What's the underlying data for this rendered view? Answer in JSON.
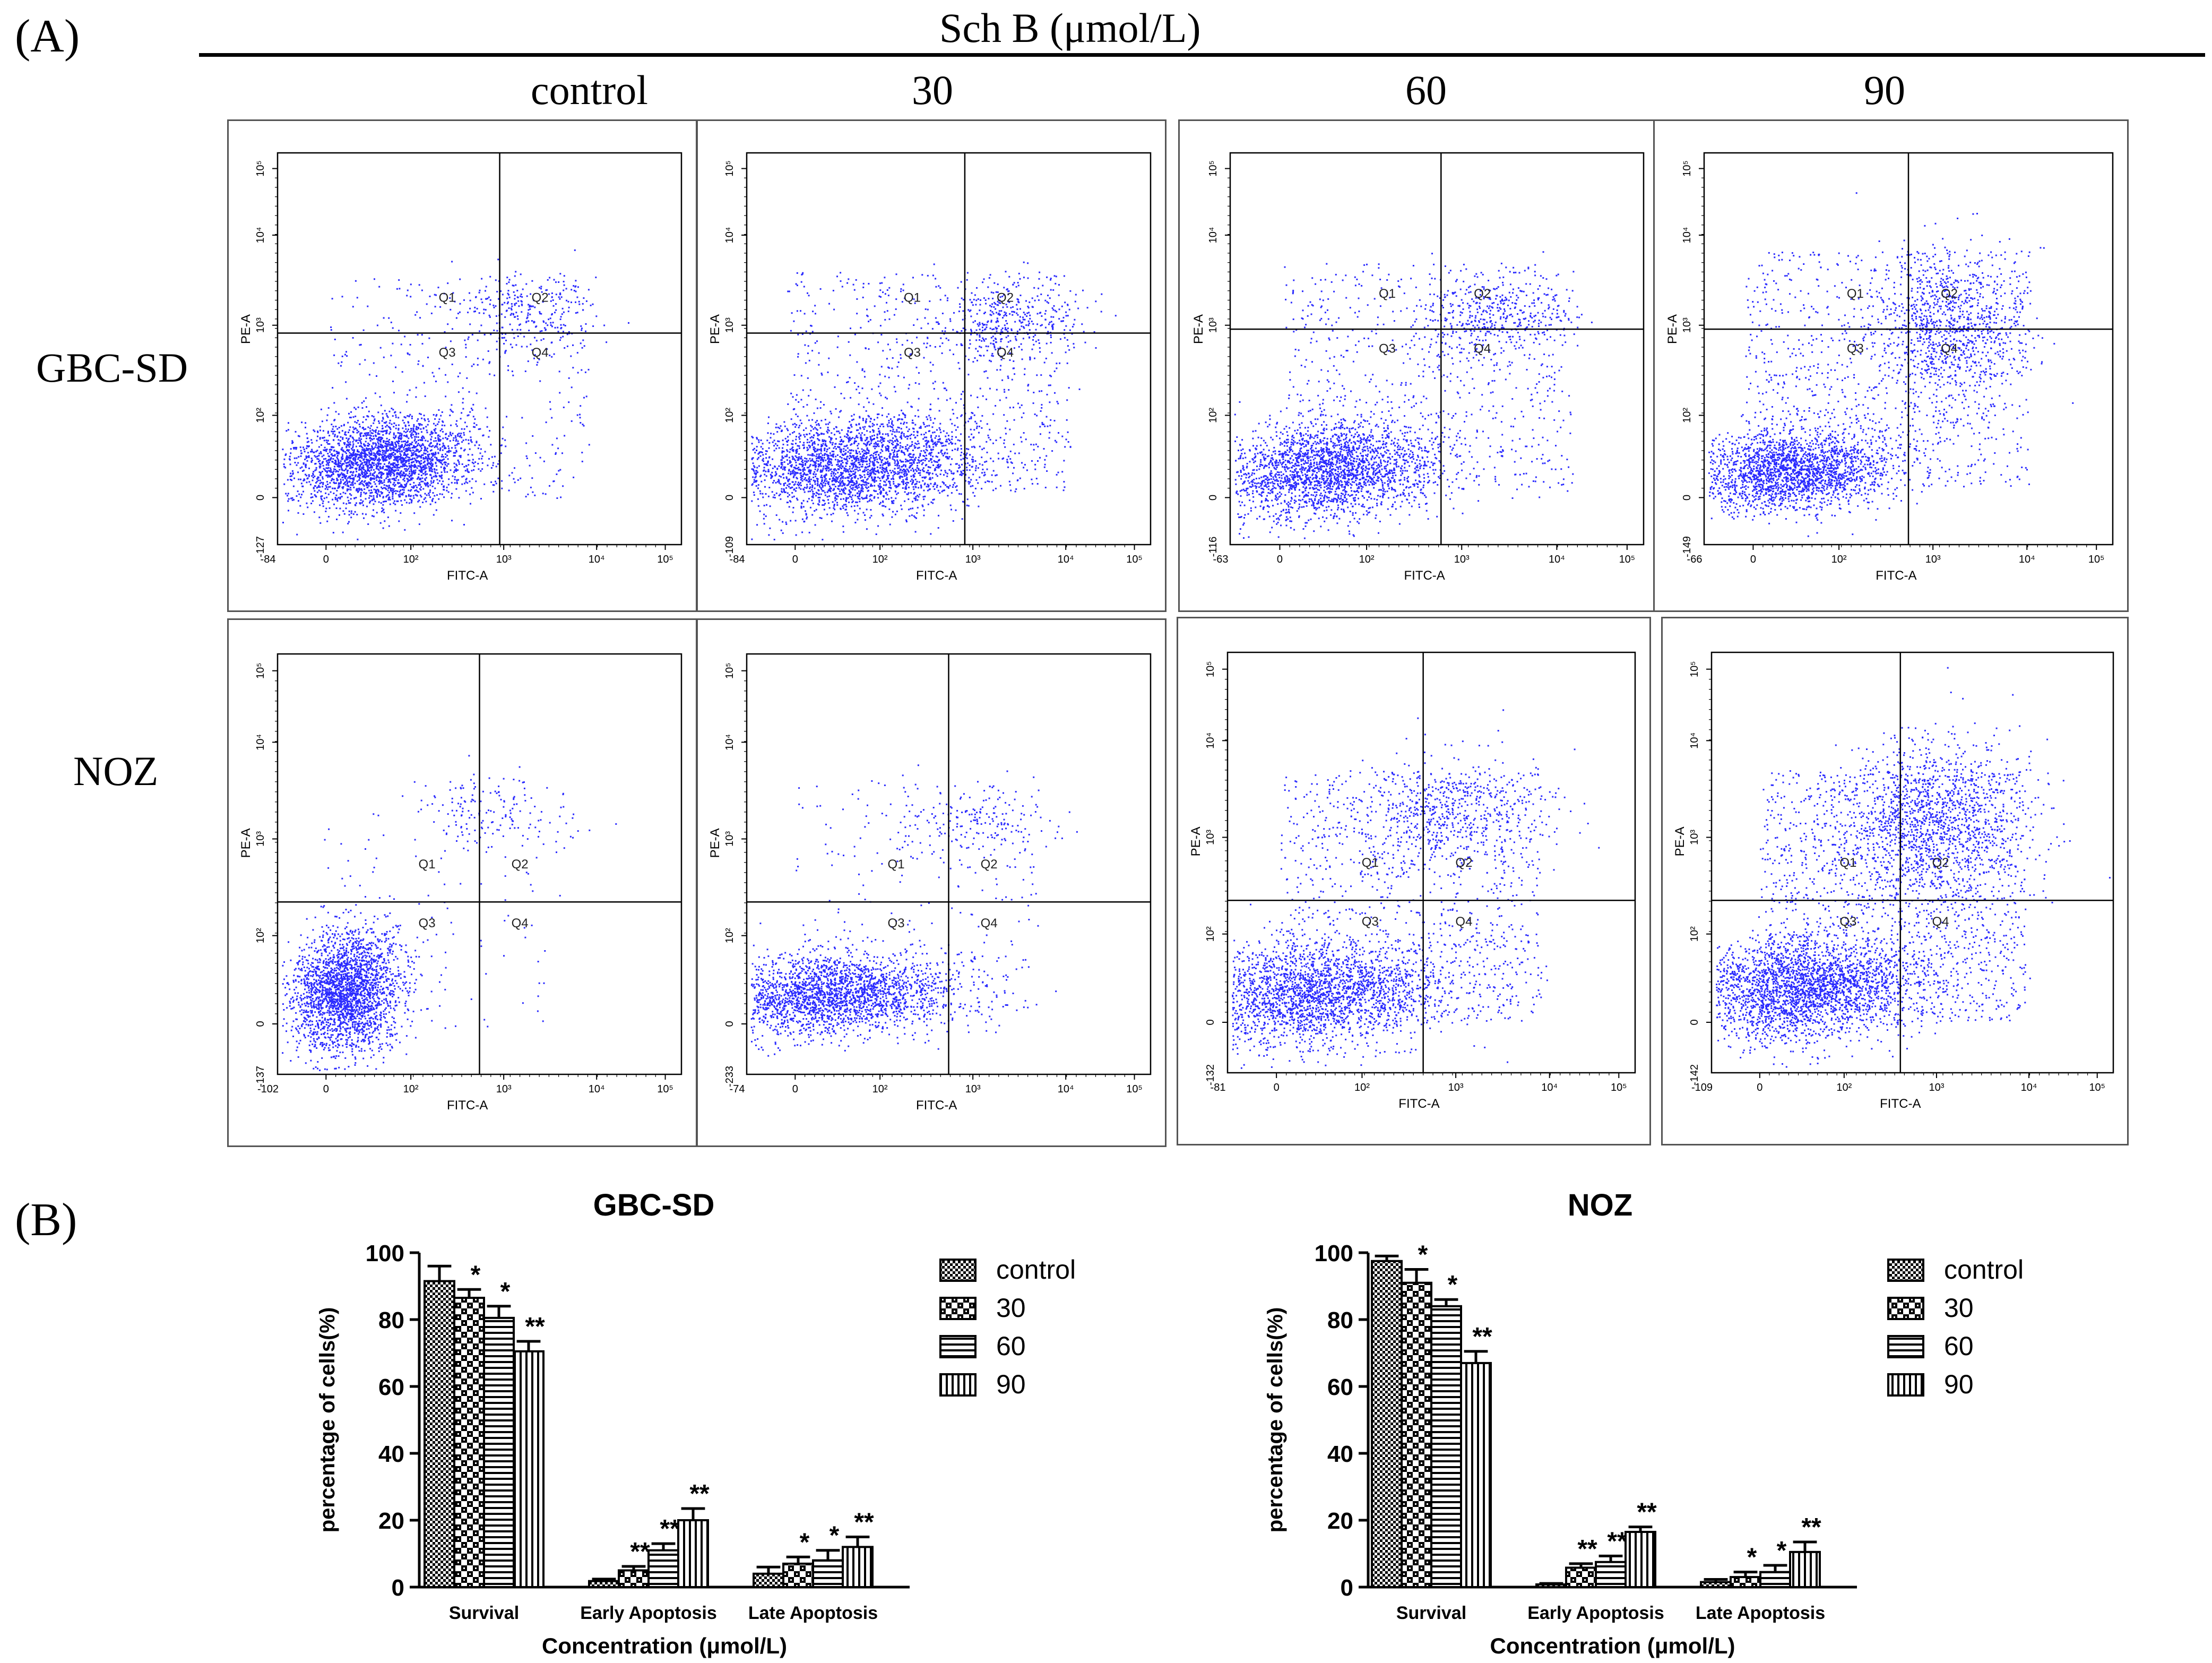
{
  "panel_a": {
    "label": "(A)",
    "header": "Sch B (μmol/L)",
    "columns": [
      "control",
      "30",
      "60",
      "90"
    ],
    "rows": [
      "GBC-SD",
      "NOZ"
    ],
    "plot": {
      "x_axis_label": "FITC-A",
      "y_axis_label": "PE-A",
      "quadrants": [
        "Q1",
        "Q2",
        "Q3",
        "Q4"
      ],
      "x_ticks": [
        "0",
        "10²",
        "10³",
        "10⁴",
        "10⁵"
      ],
      "y_ticks": [
        "0",
        "10²",
        "10³",
        "10⁴",
        "10⁵"
      ],
      "x_min": [
        [
          "-84",
          "-84",
          "-63",
          "-66"
        ],
        [
          "-102",
          "-74",
          "-81",
          "-109"
        ]
      ],
      "y_min": [
        [
          "-127",
          "-109",
          "-116",
          "-149"
        ],
        [
          "-137",
          "-233",
          "-132",
          "-142"
        ]
      ]
    },
    "dot_color": "#2b2bff"
  },
  "chart_data": [
    {
      "type": "bar",
      "title": "GBC-SD",
      "xlabel": "Concentration (μmol/L)",
      "ylabel": "percentage of cells(%)",
      "ylim": [
        0,
        100
      ],
      "yticks": [
        "0",
        "20",
        "40",
        "60",
        "80",
        "100"
      ],
      "categories": [
        "Survival",
        "Early Apoptosis",
        "Late Apoptosis"
      ],
      "series": [
        {
          "name": "control",
          "values": [
            91.5,
            1.8,
            4.0
          ],
          "errors": [
            4.5,
            0.6,
            2.0
          ],
          "sig": [
            "",
            "",
            ""
          ]
        },
        {
          "name": "30",
          "values": [
            86.5,
            5.0,
            7.0
          ],
          "errors": [
            2.5,
            1.2,
            2.0
          ],
          "sig": [
            "*",
            "**",
            "*"
          ]
        },
        {
          "name": "60",
          "values": [
            80.5,
            11.0,
            8.0
          ],
          "errors": [
            3.5,
            2.0,
            3.0
          ],
          "sig": [
            "*",
            "**",
            "*"
          ]
        },
        {
          "name": "90",
          "values": [
            70.5,
            20.0,
            12.0
          ],
          "errors": [
            3.0,
            3.5,
            3.0
          ],
          "sig": [
            "**",
            "**",
            "**"
          ]
        }
      ]
    },
    {
      "type": "bar",
      "title": "NOZ",
      "xlabel": "Concentration (μmol/L)",
      "ylabel": "percentage of cells(%)",
      "ylim": [
        0,
        100
      ],
      "yticks": [
        "0",
        "20",
        "40",
        "60",
        "80",
        "100"
      ],
      "categories": [
        "Survival",
        "Early Apoptosis",
        "Late Apoptosis"
      ],
      "series": [
        {
          "name": "control",
          "values": [
            97.5,
            0.8,
            1.5
          ],
          "errors": [
            1.5,
            0.3,
            0.8
          ],
          "sig": [
            "",
            "",
            ""
          ]
        },
        {
          "name": "30",
          "values": [
            91.0,
            5.8,
            3.0
          ],
          "errors": [
            4.0,
            1.2,
            1.5
          ],
          "sig": [
            "*",
            "**",
            "*"
          ]
        },
        {
          "name": "60",
          "values": [
            84.0,
            7.5,
            4.5
          ],
          "errors": [
            2.0,
            1.8,
            2.0
          ],
          "sig": [
            "*",
            "**",
            "*"
          ]
        },
        {
          "name": "90",
          "values": [
            67.0,
            16.5,
            10.5
          ],
          "errors": [
            3.5,
            1.5,
            3.0
          ],
          "sig": [
            "**",
            "**",
            "**"
          ]
        }
      ]
    }
  ],
  "panel_b": {
    "label": "(B)"
  }
}
